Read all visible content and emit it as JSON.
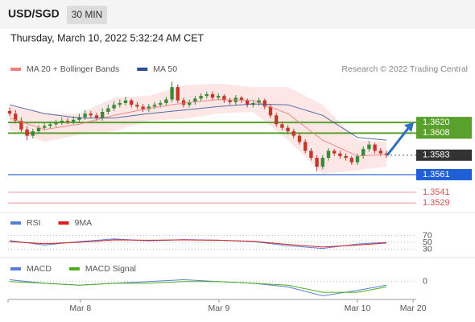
{
  "header": {
    "symbol": "USD/SGD",
    "interval": "30 MIN",
    "timestamp": "Thursday, March 10, 2022 5:32:24 AM CET"
  },
  "chart_data": [
    {
      "type": "candlestick",
      "annotation": "Research © 2022 Trading Central",
      "xlim": [
        0,
        70
      ],
      "xticks": [
        {
          "value": 12.2,
          "label": "Mar 8"
        },
        {
          "value": 36.1,
          "label": "Mar 9"
        },
        {
          "value": 60,
          "label": "Mar 10"
        },
        {
          "value": 69.6,
          "label": "Mar 20"
        }
      ],
      "ylim": [
        1.352,
        1.3672
      ],
      "up_color": "#3a8a3a",
      "down_color": "#c0392b",
      "open": [
        1.3633,
        1.363,
        1.3622,
        1.3612,
        1.3605,
        1.361,
        1.3614,
        1.3616,
        1.3618,
        1.362,
        1.3622,
        1.3621,
        1.3623,
        1.3626,
        1.363,
        1.3628,
        1.3625,
        1.3632,
        1.3636,
        1.364,
        1.3642,
        1.3645,
        1.364,
        1.3638,
        1.3635,
        1.3638,
        1.364,
        1.3642,
        1.3646,
        1.366,
        1.3645,
        1.364,
        1.3643,
        1.3647,
        1.365,
        1.3652,
        1.3648,
        1.365,
        1.3645,
        1.3643,
        1.3648,
        1.3645,
        1.364,
        1.3642,
        1.3645,
        1.3638,
        1.3628,
        1.3618,
        1.3614,
        1.361,
        1.3605,
        1.3598,
        1.3588,
        1.358,
        1.357,
        1.358,
        1.3588,
        1.3585,
        1.3582,
        1.358,
        1.3575,
        1.3582,
        1.359,
        1.3595,
        1.3588,
        1.3585
      ],
      "high": [
        1.3637,
        1.3634,
        1.3626,
        1.3616,
        1.3613,
        1.3617,
        1.3619,
        1.3621,
        1.3623,
        1.3626,
        1.3625,
        1.3627,
        1.363,
        1.3634,
        1.3633,
        1.3631,
        1.3636,
        1.364,
        1.3644,
        1.3646,
        1.3649,
        1.3647,
        1.3643,
        1.3641,
        1.3641,
        1.3643,
        1.3645,
        1.3649,
        1.3666,
        1.3663,
        1.3648,
        1.3646,
        1.365,
        1.3653,
        1.3655,
        1.3655,
        1.3653,
        1.3652,
        1.3648,
        1.3651,
        1.365,
        1.3647,
        1.3645,
        1.3648,
        1.3647,
        1.3641,
        1.3631,
        1.3621,
        1.3617,
        1.3613,
        1.3608,
        1.3601,
        1.3591,
        1.3583,
        1.3583,
        1.3591,
        1.359,
        1.3588,
        1.3585,
        1.3582,
        1.3585,
        1.3593,
        1.3599,
        1.3597,
        1.3591,
        1.3588
      ],
      "low": [
        1.3627,
        1.3619,
        1.3609,
        1.36,
        1.3602,
        1.3607,
        1.3611,
        1.3613,
        1.3615,
        1.3617,
        1.3618,
        1.3618,
        1.362,
        1.3623,
        1.3625,
        1.3622,
        1.3622,
        1.3629,
        1.3633,
        1.3637,
        1.3639,
        1.3637,
        1.3635,
        1.3632,
        1.3632,
        1.3635,
        1.3637,
        1.3639,
        1.3643,
        1.3642,
        1.3637,
        1.3637,
        1.364,
        1.3644,
        1.3647,
        1.3645,
        1.3645,
        1.3642,
        1.364,
        1.364,
        1.3642,
        1.3637,
        1.3637,
        1.3639,
        1.3635,
        1.3625,
        1.3615,
        1.3611,
        1.3607,
        1.3602,
        1.3595,
        1.3585,
        1.3577,
        1.3565,
        1.3567,
        1.3577,
        1.3582,
        1.3579,
        1.3577,
        1.3572,
        1.3572,
        1.3579,
        1.3587,
        1.3585,
        1.3582,
        1.358
      ],
      "close": [
        1.363,
        1.3622,
        1.3612,
        1.3605,
        1.361,
        1.3614,
        1.3616,
        1.3618,
        1.362,
        1.3622,
        1.3621,
        1.3623,
        1.3626,
        1.363,
        1.3628,
        1.3625,
        1.3632,
        1.3636,
        1.364,
        1.3642,
        1.3645,
        1.364,
        1.3638,
        1.3635,
        1.3638,
        1.364,
        1.3642,
        1.3646,
        1.366,
        1.3645,
        1.364,
        1.3643,
        1.3647,
        1.365,
        1.3652,
        1.3648,
        1.365,
        1.3645,
        1.3643,
        1.3648,
        1.3645,
        1.364,
        1.3642,
        1.3645,
        1.3638,
        1.3628,
        1.3618,
        1.3614,
        1.361,
        1.3605,
        1.3598,
        1.3588,
        1.358,
        1.357,
        1.358,
        1.3588,
        1.3585,
        1.3582,
        1.358,
        1.3575,
        1.3582,
        1.359,
        1.3595,
        1.3588,
        1.3585,
        1.3583
      ],
      "series": [
        {
          "name": "MA 20 + Bollinger Bands",
          "color": "#f08080",
          "x": [
            0,
            6,
            12,
            18,
            24,
            30,
            36,
            42,
            48,
            54,
            60,
            65
          ],
          "values": [
            1.3625,
            1.3612,
            1.3618,
            1.3628,
            1.3636,
            1.3642,
            1.3646,
            1.3645,
            1.363,
            1.36,
            1.3582,
            1.3584
          ],
          "upper": [
            1.364,
            1.363,
            1.363,
            1.3648,
            1.365,
            1.3662,
            1.3664,
            1.366,
            1.366,
            1.364,
            1.36,
            1.3598
          ],
          "lower": [
            1.3612,
            1.3598,
            1.3606,
            1.361,
            1.3622,
            1.3624,
            1.363,
            1.3632,
            1.36,
            1.3562,
            1.3566,
            1.357
          ]
        },
        {
          "name": "MA 50",
          "color": "#2b4f8f",
          "x": [
            0,
            6,
            12,
            18,
            24,
            30,
            36,
            42,
            48,
            54,
            60,
            65
          ],
          "values": [
            1.364,
            1.363,
            1.3625,
            1.3625,
            1.363,
            1.3634,
            1.3638,
            1.3641,
            1.364,
            1.3628,
            1.3603,
            1.36
          ]
        }
      ],
      "levels": [
        {
          "value": 1.362,
          "label": "1.3620",
          "color": "#5aa02c",
          "box": true
        },
        {
          "value": 1.3608,
          "label": "1.3608",
          "color": "#5aa02c",
          "box": true
        },
        {
          "value": 1.3583,
          "label": "1.3583",
          "color": "#333333",
          "box": true
        },
        {
          "value": 1.3561,
          "label": "1.3561",
          "color": "#1f5fd6",
          "box": true
        },
        {
          "value": 1.3541,
          "label": "1.3541",
          "color": "#e05050",
          "box": false
        },
        {
          "value": 1.3529,
          "label": "1.3529",
          "color": "#e05050",
          "box": false
        }
      ]
    },
    {
      "type": "line",
      "xlim": [
        0,
        70
      ],
      "ylim": [
        10,
        90
      ],
      "yticks": [
        70,
        50,
        30
      ],
      "series": [
        {
          "name": "RSI",
          "color": "#5b7fd6",
          "x": [
            0,
            6,
            12,
            18,
            24,
            30,
            36,
            42,
            48,
            54,
            60,
            65
          ],
          "values": [
            55,
            42,
            52,
            60,
            54,
            58,
            56,
            52,
            40,
            32,
            45,
            50
          ]
        },
        {
          "name": "9MA",
          "color": "#d62020",
          "x": [
            0,
            6,
            12,
            18,
            24,
            30,
            36,
            42,
            48,
            54,
            60,
            65
          ],
          "values": [
            52,
            46,
            50,
            57,
            56,
            57,
            56,
            53,
            44,
            36,
            42,
            48
          ]
        }
      ]
    },
    {
      "type": "line",
      "xlim": [
        0,
        70
      ],
      "ylim": [
        -0.001,
        0.0003
      ],
      "yticks": [
        0
      ],
      "series": [
        {
          "name": "MACD",
          "color": "#5b7fd6",
          "x": [
            0,
            6,
            12,
            18,
            24,
            30,
            36,
            42,
            48,
            54,
            60,
            65
          ],
          "values": [
            0.0001,
            -0.0001,
            -0.0002,
            -0.0001,
            0,
            0.0001,
            0,
            -0.0001,
            -0.0003,
            -0.0008,
            -0.0005,
            -0.0002
          ]
        },
        {
          "name": "MACD Signal",
          "color": "#4caf20",
          "x": [
            0,
            6,
            12,
            18,
            24,
            30,
            36,
            42,
            48,
            54,
            60,
            65
          ],
          "values": [
            0,
            -0.0001,
            -0.0002,
            -0.0001,
            -0.0001,
            0,
            0,
            -0.0001,
            -0.0002,
            -0.0006,
            -0.0006,
            -0.0003
          ]
        }
      ]
    }
  ]
}
